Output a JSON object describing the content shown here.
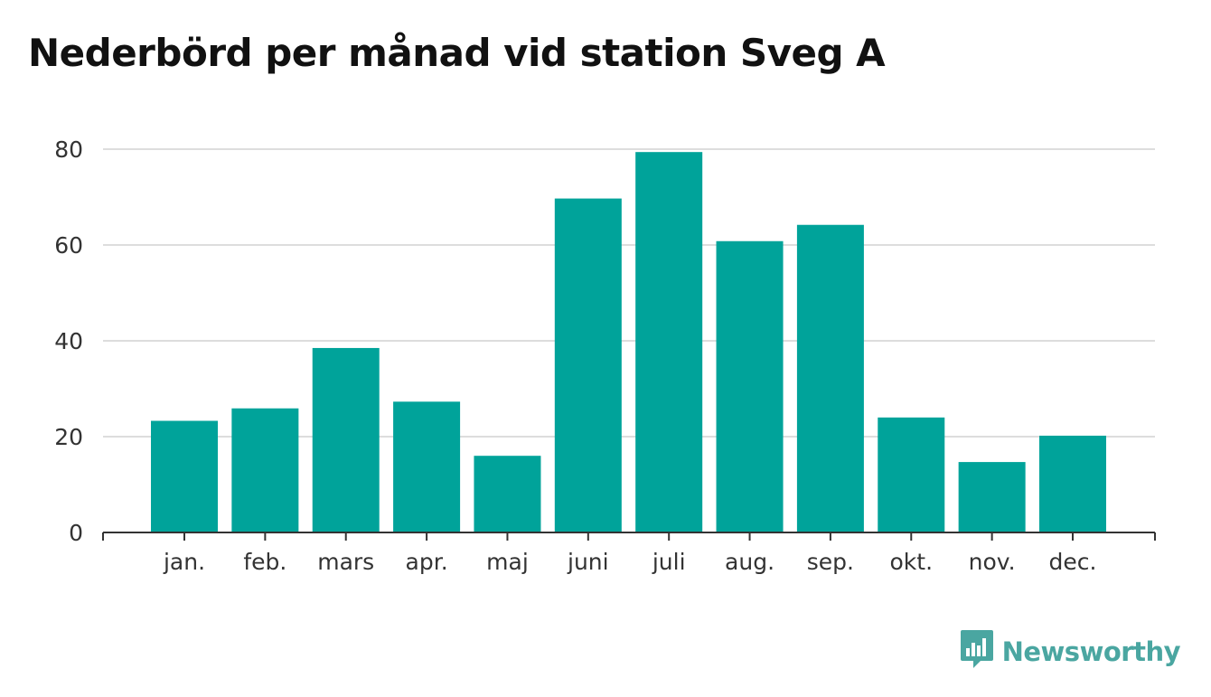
{
  "title": "Nederbörd per månad vid station Sveg A",
  "brand": {
    "name": "Newsworthy",
    "icon": "newsworthy-logo-icon",
    "color": "#4aa6a1"
  },
  "colors": {
    "bar": "#00a39a",
    "grid": "#dddddd",
    "axis": "#333333"
  },
  "chart_data": {
    "type": "bar",
    "title": "Nederbörd per månad vid station Sveg A",
    "xlabel": "",
    "ylabel": "",
    "categories": [
      "jan.",
      "feb.",
      "mars",
      "apr.",
      "maj",
      "juni",
      "juli",
      "aug.",
      "sep.",
      "okt.",
      "nov.",
      "dec."
    ],
    "values": [
      23.3,
      25.9,
      38.5,
      27.3,
      16.0,
      69.7,
      79.4,
      60.8,
      64.2,
      24.0,
      14.7,
      20.2
    ],
    "ylim": [
      0,
      80
    ],
    "yticks": [
      0,
      20,
      40,
      60,
      80
    ],
    "grid": true,
    "legend": "none"
  }
}
